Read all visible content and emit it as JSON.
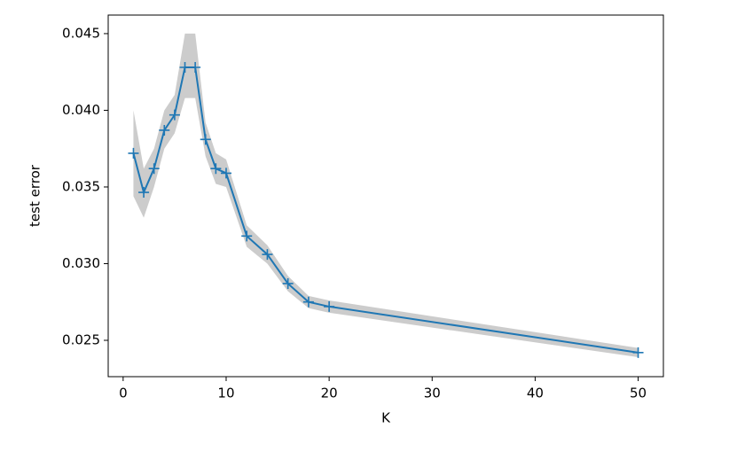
{
  "chart_data": {
    "type": "line",
    "x_label": "K",
    "y_label": "test error",
    "x": [
      1,
      2,
      3,
      4,
      5,
      6,
      7,
      8,
      9,
      10,
      12,
      14,
      16,
      18,
      20,
      50
    ],
    "series": [
      {
        "color": "#1f77b4",
        "marker": "+",
        "values": [
          0.0372,
          0.03465,
          0.0362,
          0.0387,
          0.0397,
          0.0428,
          0.0428,
          0.0381,
          0.0362,
          0.0359,
          0.0318,
          0.0306,
          0.0287,
          0.0275,
          0.0272,
          0.0242
        ],
        "band_color": "#bfbfbf",
        "band_upper": [
          0.04,
          0.0362,
          0.0375,
          0.04,
          0.041,
          0.045,
          0.045,
          0.0392,
          0.0372,
          0.0368,
          0.0325,
          0.0312,
          0.0292,
          0.0279,
          0.0276,
          0.0245
        ],
        "band_lower": [
          0.0344,
          0.033,
          0.035,
          0.0375,
          0.0385,
          0.0408,
          0.0408,
          0.037,
          0.0352,
          0.035,
          0.0311,
          0.03,
          0.0282,
          0.0271,
          0.0268,
          0.0239
        ]
      }
    ],
    "xlim": [
      -1.45,
      52.45
    ],
    "xticks": [
      0,
      10,
      20,
      30,
      40,
      50
    ],
    "ylim": [
      0.02263,
      0.04621
    ],
    "yticks": [
      0.025,
      {
        "value": 0.03,
        "label": "0.030"
      },
      0.035,
      {
        "value": 0.04,
        "label": "0.040"
      },
      0.045
    ],
    "grid": false
  }
}
